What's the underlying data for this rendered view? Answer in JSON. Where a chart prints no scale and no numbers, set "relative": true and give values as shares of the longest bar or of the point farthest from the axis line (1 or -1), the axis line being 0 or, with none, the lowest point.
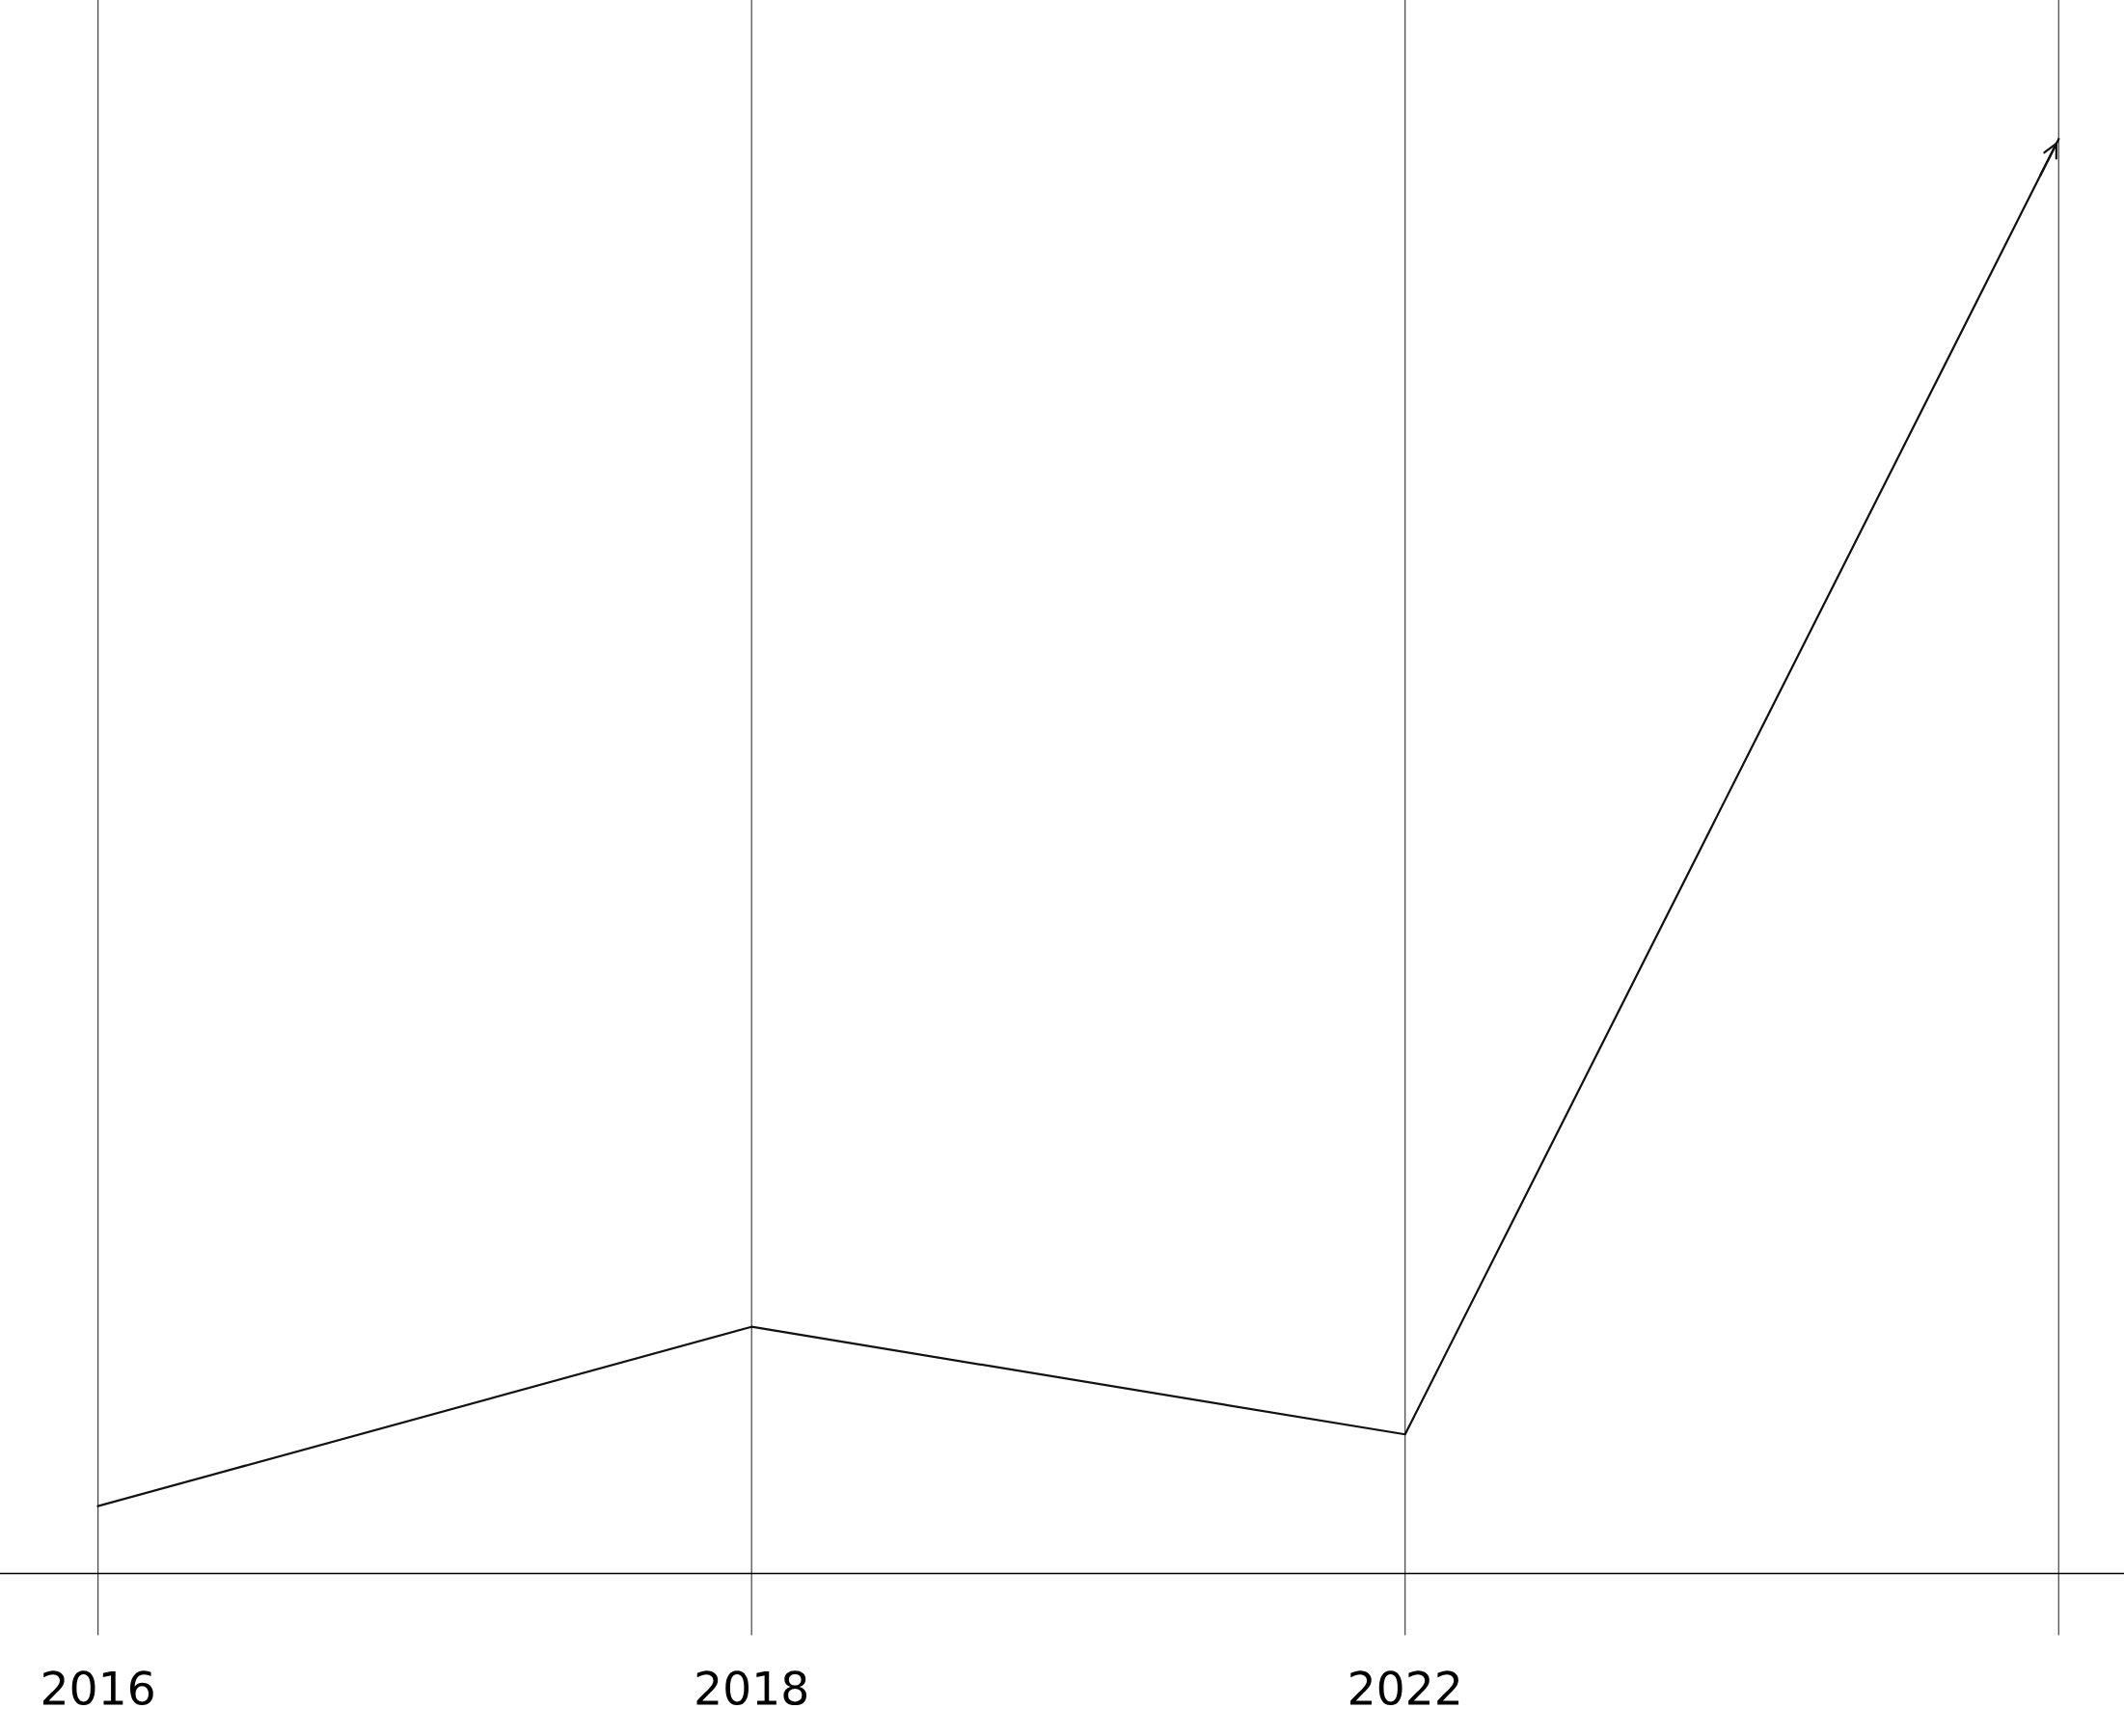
{
  "chart_data": {
    "type": "line",
    "relative": true,
    "categories": [
      "2016",
      "2018",
      "2022",
      null
    ],
    "series": [
      {
        "color": "#111111",
        "values": [
          0.047,
          0.172,
          0.097,
          1.0
        ]
      }
    ],
    "grid": "x",
    "marker": "none",
    "line_style": "solid"
  }
}
